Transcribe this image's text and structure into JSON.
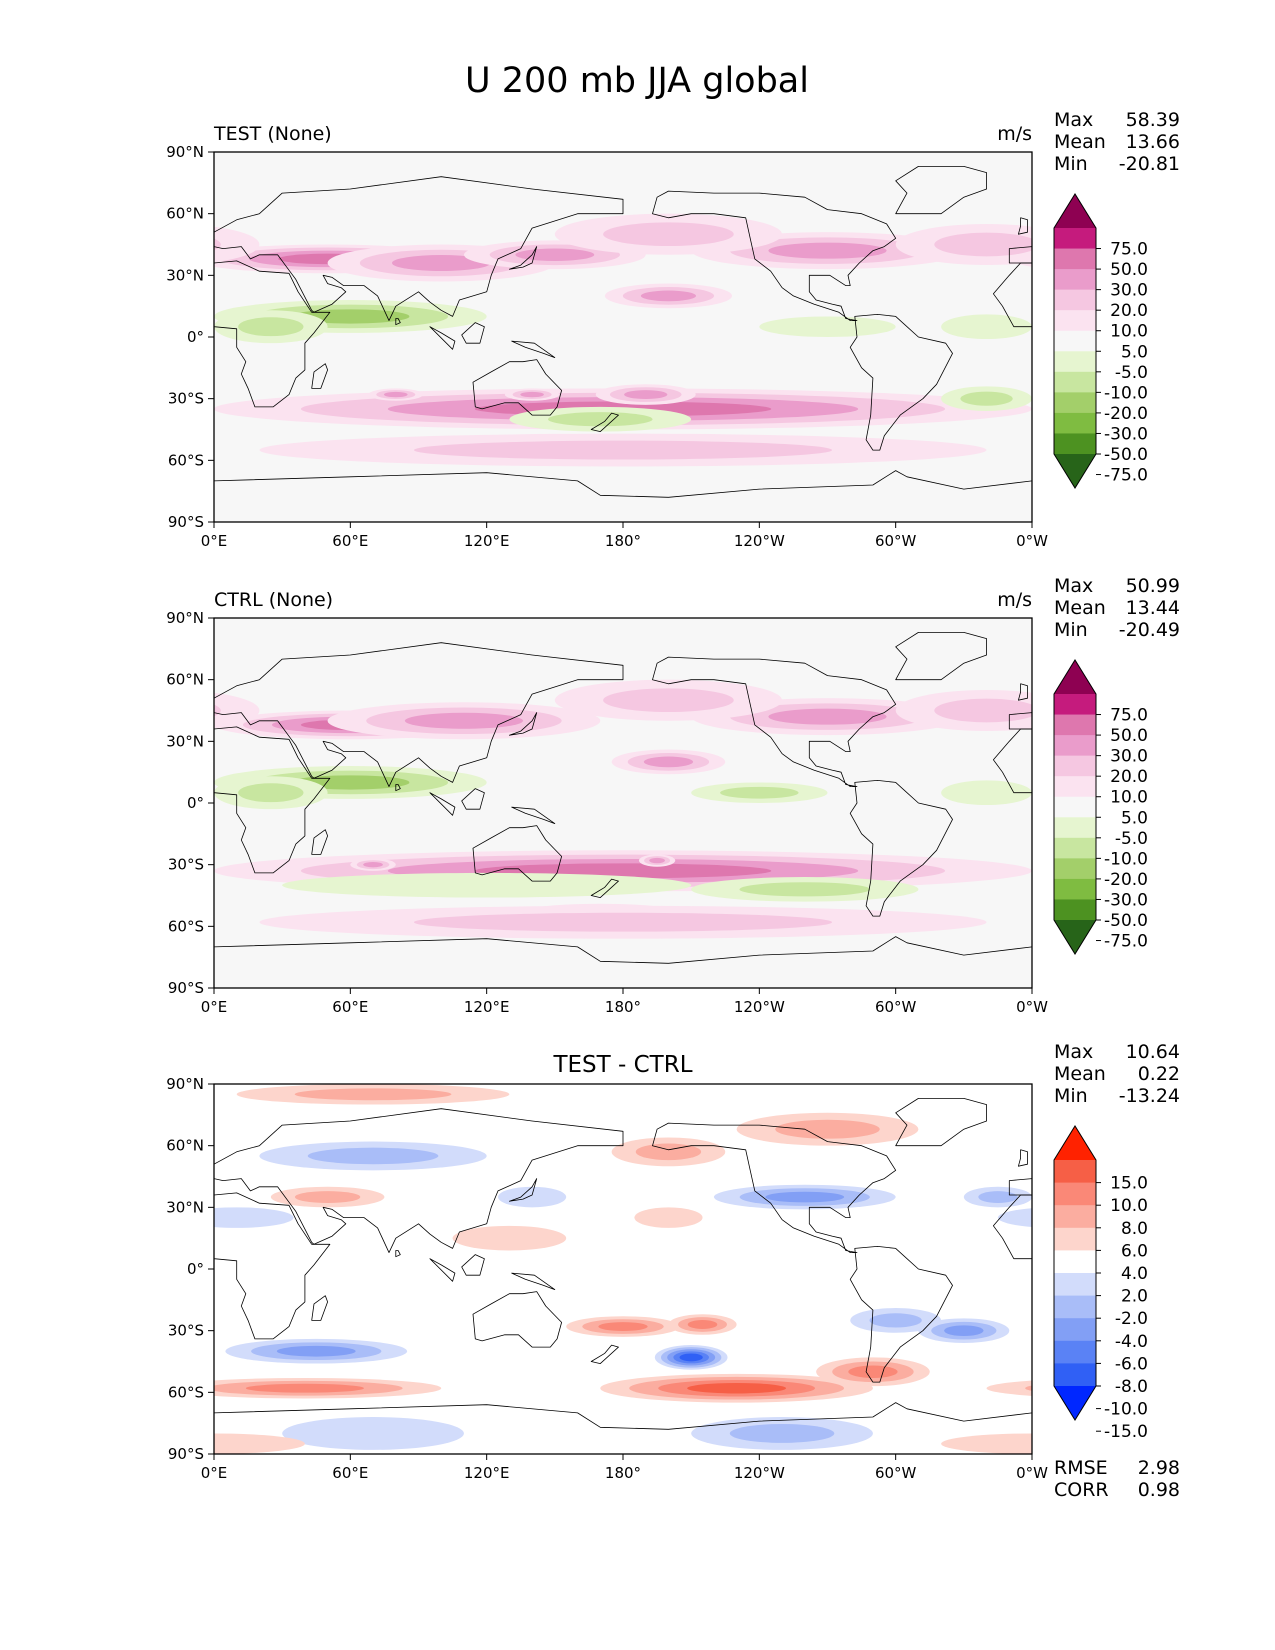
{
  "figure": {
    "title": "U 200 mb JJA global"
  },
  "palettes": {
    "field": [
      "#276419",
      "#4d9221",
      "#7fbc41",
      "#a3cf6a",
      "#c8e6a0",
      "#e6f5d0",
      "#f7f7f7",
      "#fbe3f0",
      "#f5c7e1",
      "#ea9ccb",
      "#de77ae",
      "#c51b7d",
      "#8e0152"
    ],
    "diff": [
      "#0027ff",
      "#3060f5",
      "#5a82f5",
      "#829ff5",
      "#a9bdf8",
      "#d2dcfb",
      "#ffffff",
      "#fdd5cc",
      "#fbada0",
      "#fa8877",
      "#f65f46",
      "#ff2200"
    ],
    "land_outline": "#000000"
  },
  "x_ticks": [
    "0°E",
    "60°E",
    "120°E",
    "180°",
    "120°W",
    "60°W",
    "0°W"
  ],
  "y_ticks": [
    "90°N",
    "60°N",
    "30°N",
    "0°",
    "30°S",
    "60°S",
    "90°S"
  ],
  "panels": [
    {
      "left_title": "TEST (None)",
      "center_title": "",
      "units": "m/s",
      "stats": [
        {
          "label": "Max",
          "value": "58.39"
        },
        {
          "label": "Mean",
          "value": "13.66"
        },
        {
          "label": "Min",
          "value": "-20.81"
        }
      ],
      "colorbar_labels": [
        "75.0",
        "50.0",
        "30.0",
        "20.0",
        "10.0",
        "5.0",
        "-5.0",
        "-10.0",
        "-20.0",
        "-30.0",
        "-50.0",
        "-75.0"
      ],
      "palette": "field",
      "footer_stats": []
    },
    {
      "left_title": "CTRL (None)",
      "center_title": "",
      "units": "m/s",
      "stats": [
        {
          "label": "Max",
          "value": "50.99"
        },
        {
          "label": "Mean",
          "value": "13.44"
        },
        {
          "label": "Min",
          "value": "-20.49"
        }
      ],
      "colorbar_labels": [
        "75.0",
        "50.0",
        "30.0",
        "20.0",
        "10.0",
        "5.0",
        "-5.0",
        "-10.0",
        "-20.0",
        "-30.0",
        "-50.0",
        "-75.0"
      ],
      "palette": "field",
      "footer_stats": []
    },
    {
      "left_title": "",
      "center_title": "TEST - CTRL",
      "units": "",
      "stats": [
        {
          "label": "Max",
          "value": "10.64"
        },
        {
          "label": "Mean",
          "value": "0.22"
        },
        {
          "label": "Min",
          "value": "-13.24"
        }
      ],
      "colorbar_labels": [
        "15.0",
        "10.0",
        "8.0",
        "6.0",
        "4.0",
        "2.0",
        "-2.0",
        "-4.0",
        "-6.0",
        "-8.0",
        "-10.0",
        "-15.0"
      ],
      "palette": "diff",
      "footer_stats": [
        {
          "label": "RMSE",
          "value": "2.98"
        },
        {
          "label": "CORR",
          "value": "0.98"
        }
      ]
    }
  ],
  "chart_data": [
    {
      "type": "heatmap",
      "title": "TEST (None)",
      "units": "m/s",
      "xlim": [
        0,
        360
      ],
      "ylim": [
        -90,
        90
      ],
      "contour_levels": [
        -75,
        -50,
        -30,
        -20,
        -10,
        -5,
        5,
        10,
        20,
        30,
        50,
        75
      ],
      "colorbar_extend": "both",
      "stats": {
        "max": 58.39,
        "mean": 13.66,
        "min": -20.81
      },
      "features": [
        {
          "lon": 50,
          "lat": 38,
          "dlon": 60,
          "dlat": 7,
          "value": 38
        },
        {
          "lon": 100,
          "lat": 36,
          "dlon": 50,
          "dlat": 9,
          "value": 28
        },
        {
          "lon": 150,
          "lat": 40,
          "dlon": 40,
          "dlat": 7,
          "value": 26
        },
        {
          "lon": 270,
          "lat": 42,
          "dlon": 60,
          "dlat": 9,
          "value": 25
        },
        {
          "lon": 340,
          "lat": 45,
          "dlon": 40,
          "dlat": 10,
          "value": 15
        },
        {
          "lon": 200,
          "lat": 20,
          "dlon": 28,
          "dlat": 6,
          "value": 24
        },
        {
          "lon": 200,
          "lat": 50,
          "dlon": 50,
          "dlat": 10,
          "value": 12
        },
        {
          "lon": 60,
          "lat": 10,
          "dlon": 60,
          "dlat": 8,
          "value": -22
        },
        {
          "lon": 25,
          "lat": 5,
          "dlon": 25,
          "dlat": 8,
          "value": -10
        },
        {
          "lon": 270,
          "lat": 5,
          "dlon": 30,
          "dlat": 5,
          "value": -9
        },
        {
          "lon": 340,
          "lat": 5,
          "dlon": 20,
          "dlat": 6,
          "value": -9
        },
        {
          "lon": 180,
          "lat": -35,
          "dlon": 180,
          "dlat": 10,
          "value": 32
        },
        {
          "lon": 190,
          "lat": -28,
          "dlon": 22,
          "dlat": 5,
          "value": 24
        },
        {
          "lon": 80,
          "lat": -28,
          "dlon": 12,
          "dlat": 3,
          "value": 20
        },
        {
          "lon": 140,
          "lat": -28,
          "dlon": 12,
          "dlat": 3,
          "value": 20
        },
        {
          "lon": 180,
          "lat": -55,
          "dlon": 160,
          "dlat": 8,
          "value": 14
        },
        {
          "lon": 170,
          "lat": -40,
          "dlon": 40,
          "dlat": 6,
          "value": -14
        },
        {
          "lon": 340,
          "lat": -30,
          "dlon": 20,
          "dlat": 6,
          "value": -12
        }
      ]
    },
    {
      "type": "heatmap",
      "title": "CTRL (None)",
      "units": "m/s",
      "xlim": [
        0,
        360
      ],
      "ylim": [
        -90,
        90
      ],
      "contour_levels": [
        -75,
        -50,
        -30,
        -20,
        -10,
        -5,
        5,
        10,
        20,
        30,
        50,
        75
      ],
      "colorbar_extend": "both",
      "stats": {
        "max": 50.99,
        "mean": 13.44,
        "min": -20.49
      },
      "features": [
        {
          "lon": 60,
          "lat": 38,
          "dlon": 60,
          "dlat": 7,
          "value": 30
        },
        {
          "lon": 110,
          "lat": 40,
          "dlon": 60,
          "dlat": 9,
          "value": 24
        },
        {
          "lon": 270,
          "lat": 42,
          "dlon": 60,
          "dlat": 9,
          "value": 25
        },
        {
          "lon": 340,
          "lat": 45,
          "dlon": 40,
          "dlat": 10,
          "value": 15
        },
        {
          "lon": 200,
          "lat": 20,
          "dlon": 25,
          "dlat": 6,
          "value": 22
        },
        {
          "lon": 200,
          "lat": 50,
          "dlon": 50,
          "dlat": 10,
          "value": 12
        },
        {
          "lon": 60,
          "lat": 10,
          "dlon": 60,
          "dlat": 8,
          "value": -20
        },
        {
          "lon": 25,
          "lat": 5,
          "dlon": 25,
          "dlat": 8,
          "value": -10
        },
        {
          "lon": 240,
          "lat": 5,
          "dlon": 30,
          "dlat": 5,
          "value": -12
        },
        {
          "lon": 340,
          "lat": 5,
          "dlon": 20,
          "dlat": 6,
          "value": -9
        },
        {
          "lon": 180,
          "lat": -33,
          "dlon": 180,
          "dlat": 10,
          "value": 32
        },
        {
          "lon": 70,
          "lat": -30,
          "dlon": 10,
          "dlat": 3,
          "value": 20
        },
        {
          "lon": 195,
          "lat": -28,
          "dlon": 8,
          "dlat": 3,
          "value": 20
        },
        {
          "lon": 170,
          "lat": -55,
          "dlon": 40,
          "dlat": 6,
          "value": 32
        },
        {
          "lon": 180,
          "lat": -58,
          "dlon": 160,
          "dlat": 8,
          "value": 14
        },
        {
          "lon": 120,
          "lat": -40,
          "dlon": 90,
          "dlat": 6,
          "value": -8
        },
        {
          "lon": 260,
          "lat": -42,
          "dlon": 50,
          "dlat": 6,
          "value": -14
        }
      ]
    },
    {
      "type": "heatmap",
      "title": "TEST - CTRL",
      "units": "",
      "xlim": [
        0,
        360
      ],
      "ylim": [
        -90,
        90
      ],
      "contour_levels": [
        -15,
        -10,
        -8,
        -6,
        -4,
        -2,
        2,
        4,
        6,
        8,
        10,
        15
      ],
      "colorbar_extend": "both",
      "stats": {
        "max": 10.64,
        "mean": 0.22,
        "min": -13.24,
        "rmse": 2.98,
        "corr": 0.98
      },
      "features": [
        {
          "lon": 210,
          "lat": -43,
          "dlon": 16,
          "dlat": 6,
          "value": -13
        },
        {
          "lon": 180,
          "lat": -28,
          "dlon": 25,
          "dlat": 5,
          "value": 6
        },
        {
          "lon": 215,
          "lat": -27,
          "dlon": 15,
          "dlat": 5,
          "value": 6
        },
        {
          "lon": 230,
          "lat": -58,
          "dlon": 60,
          "dlat": 7,
          "value": 8
        },
        {
          "lon": 290,
          "lat": -50,
          "dlon": 25,
          "dlat": 7,
          "value": 6
        },
        {
          "lon": 40,
          "lat": -58,
          "dlon": 60,
          "dlat": 5,
          "value": 7
        },
        {
          "lon": 45,
          "lat": -40,
          "dlon": 40,
          "dlat": 6,
          "value": -7
        },
        {
          "lon": 330,
          "lat": -30,
          "dlon": 20,
          "dlat": 6,
          "value": -6
        },
        {
          "lon": 300,
          "lat": -25,
          "dlon": 20,
          "dlat": 6,
          "value": -4
        },
        {
          "lon": 250,
          "lat": -80,
          "dlon": 40,
          "dlat": 8,
          "value": -4
        },
        {
          "lon": 70,
          "lat": -80,
          "dlon": 40,
          "dlat": 8,
          "value": -3
        },
        {
          "lon": 0,
          "lat": -85,
          "dlon": 40,
          "dlat": 5,
          "value": 3
        },
        {
          "lon": 270,
          "lat": 68,
          "dlon": 40,
          "dlat": 8,
          "value": 4
        },
        {
          "lon": 50,
          "lat": 35,
          "dlon": 25,
          "dlat": 5,
          "value": 5
        },
        {
          "lon": 200,
          "lat": 57,
          "dlon": 25,
          "dlat": 7,
          "value": 5
        },
        {
          "lon": 70,
          "lat": 85,
          "dlon": 60,
          "dlat": 5,
          "value": 4
        },
        {
          "lon": 260,
          "lat": 35,
          "dlon": 40,
          "dlat": 6,
          "value": -6
        },
        {
          "lon": 70,
          "lat": 55,
          "dlon": 50,
          "dlat": 7,
          "value": -5
        },
        {
          "lon": 10,
          "lat": 25,
          "dlon": 25,
          "dlat": 5,
          "value": -3
        },
        {
          "lon": 140,
          "lat": 35,
          "dlon": 15,
          "dlat": 5,
          "value": -3
        },
        {
          "lon": 345,
          "lat": 35,
          "dlon": 15,
          "dlat": 5,
          "value": -4
        },
        {
          "lon": 200,
          "lat": 25,
          "dlon": 15,
          "dlat": 5,
          "value": 3
        },
        {
          "lon": 130,
          "lat": 15,
          "dlon": 25,
          "dlat": 6,
          "value": 3
        }
      ]
    }
  ]
}
